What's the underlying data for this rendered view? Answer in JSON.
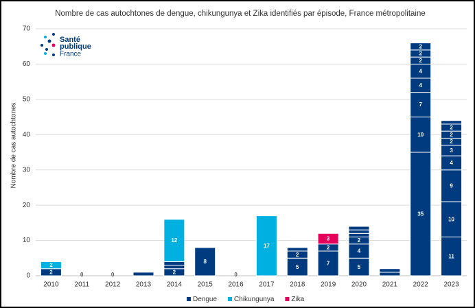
{
  "chart_data": {
    "type": "stacked-bar",
    "title": "Nombre de cas autochtones de dengue, chikungunya et Zika identifiés par épisode, France métropolitaine",
    "ylabel": "Nombre de cas autochtones",
    "logo": [
      "Santé",
      "publique",
      "France"
    ],
    "categories": [
      "2010",
      "2011",
      "2012",
      "2013",
      "2014",
      "2015",
      "2016",
      "2017",
      "2018",
      "2019",
      "2020",
      "2021",
      "2022",
      "2023"
    ],
    "series": [
      {
        "name": "Dengue",
        "color": "#003b80",
        "values": [
          [
            2
          ],
          [
            0
          ],
          [
            0
          ],
          [
            1
          ],
          [
            2,
            1,
            1
          ],
          [
            8
          ],
          [
            0
          ],
          [],
          [
            5,
            2,
            1
          ],
          [
            7,
            2
          ],
          [
            5,
            4,
            2,
            1,
            1,
            1
          ],
          [
            1,
            1
          ],
          [
            35,
            10,
            7,
            4,
            4,
            2,
            2,
            2
          ],
          [
            11,
            10,
            9,
            4,
            3,
            2,
            2,
            2,
            1
          ]
        ]
      },
      {
        "name": "Chikungunya",
        "color": "#00b0e0",
        "values": [
          [
            2
          ],
          [],
          [],
          [],
          [
            12
          ],
          [],
          [],
          [
            17
          ],
          [],
          [],
          [],
          [],
          [],
          []
        ]
      },
      {
        "name": "Zika",
        "color": "#e4005a",
        "values": [
          [],
          [],
          [],
          [],
          [],
          [],
          [],
          [],
          [],
          [
            3
          ],
          [],
          [],
          [],
          []
        ]
      }
    ],
    "ylim": [
      0,
      70
    ],
    "yticks": [
      0,
      10,
      20,
      30,
      40,
      50,
      60,
      70
    ],
    "grid": true,
    "legend": "bottom"
  }
}
